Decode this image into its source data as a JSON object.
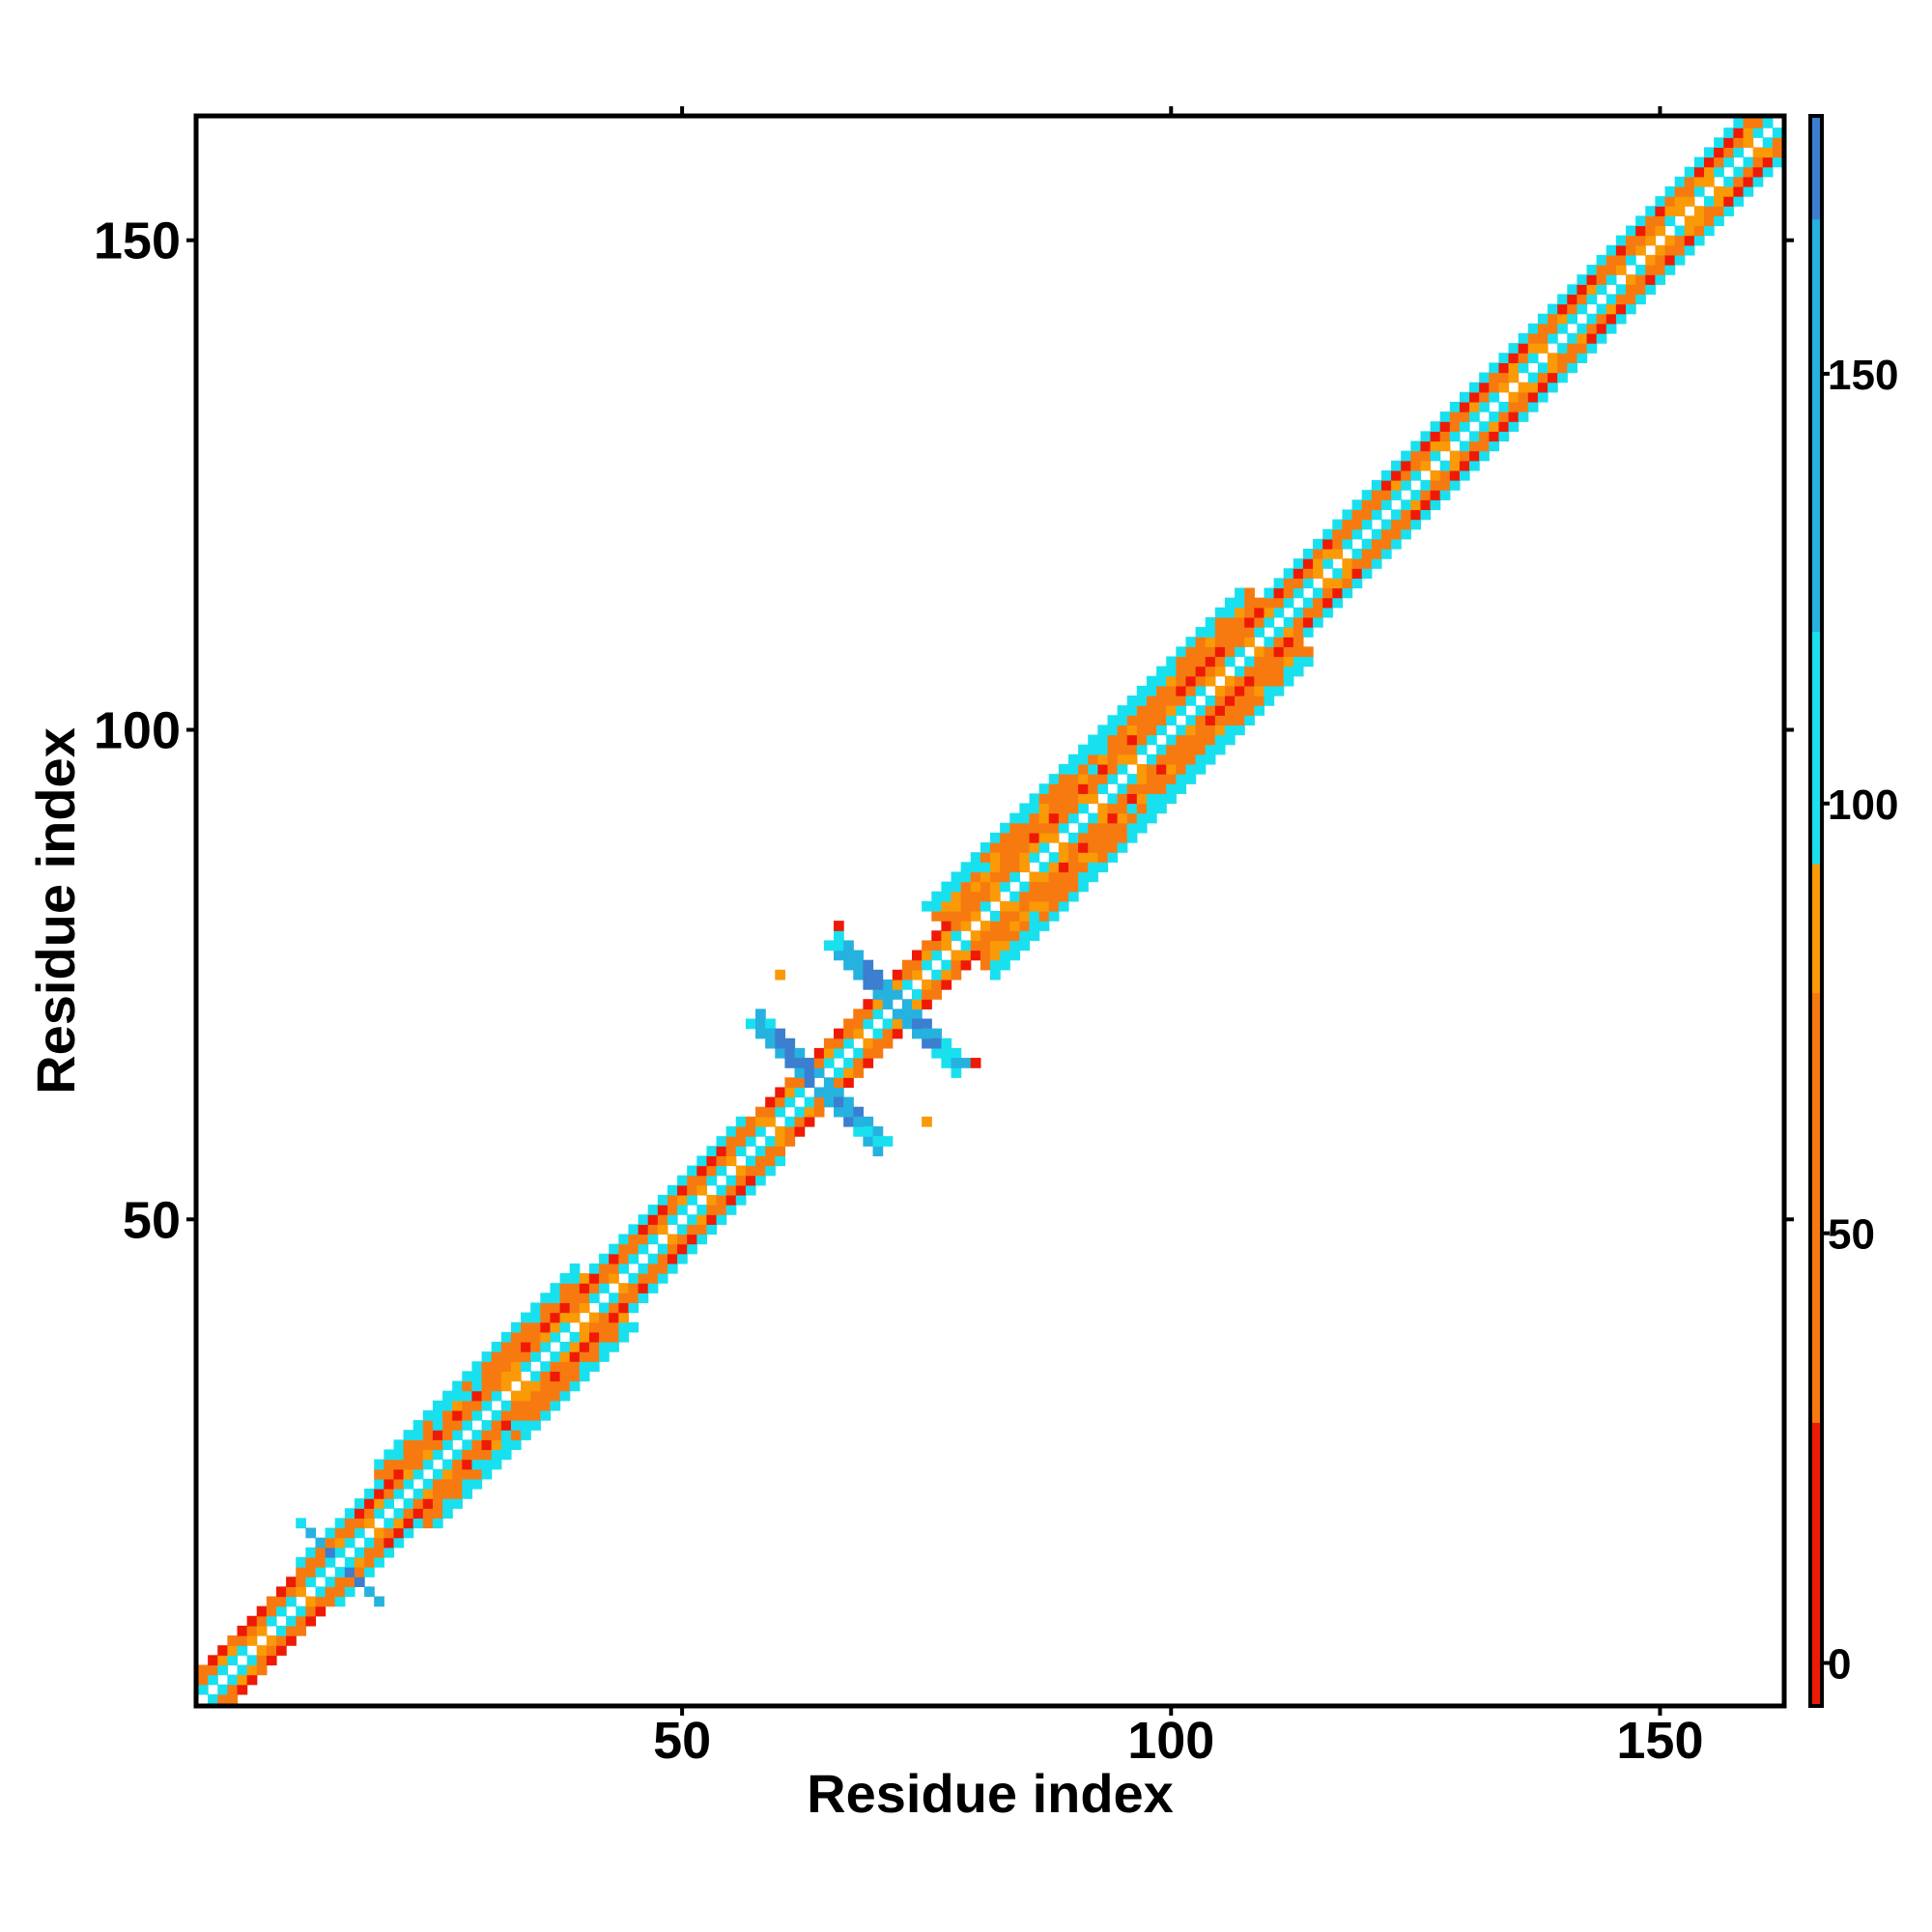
{
  "chart_data": {
    "type": "heatmap",
    "title": "",
    "xlabel": "Residue index",
    "ylabel": "Residue index",
    "xlim": [
      0.5,
      162.5
    ],
    "ylim": [
      0.5,
      162.5
    ],
    "x_ticks": [
      50,
      100,
      150
    ],
    "y_ticks": [
      50,
      100,
      150
    ],
    "grid": false,
    "legend": "colorbar-right",
    "colorbar": {
      "range": [
        -5,
        180
      ],
      "ticks": [
        0,
        50,
        100,
        150
      ],
      "stops": [
        {
          "from": -5,
          "to": 28,
          "color": "#ee1a05"
        },
        {
          "from": 28,
          "to": 78,
          "color": "#f77a10"
        },
        {
          "from": 78,
          "to": 93,
          "color": "#fa9a06"
        },
        {
          "from": 93,
          "to": 120,
          "color": "#19e0ef"
        },
        {
          "from": 120,
          "to": 168,
          "color": "#26b2df"
        },
        {
          "from": 168,
          "to": 180,
          "color": "#3c7ed0"
        }
      ],
      "above_max_color": "#ffffff"
    },
    "series": [
      {
        "band_segments": [
          {
            "from": 1,
            "to": 12,
            "halfwidth": 3
          },
          {
            "from": 13,
            "to": 21,
            "halfwidth": 4
          },
          {
            "from": 22,
            "to": 42,
            "halfwidth": 6
          },
          {
            "from": 43,
            "to": 58,
            "halfwidth": 4
          },
          {
            "from": 59,
            "to": 78,
            "halfwidth": 3
          },
          {
            "from": 79,
            "to": 111,
            "halfwidth": 7
          },
          {
            "from": 112,
            "to": 162,
            "halfwidth": 4
          }
        ]
      },
      {
        "cross_patterns": [
          {
            "center": [
              15,
              15
            ],
            "arm": 4,
            "width": 1
          },
          {
            "center": [
              64,
              64
            ],
            "arm": 6,
            "width": 2
          },
          {
            "center": [
              72,
              72
            ],
            "arm": 6,
            "width": 2
          }
        ]
      },
      {
        "isolated_cells": [
          {
            "x": 60,
            "y": 75,
            "value": 85
          },
          {
            "x": 75,
            "y": 60,
            "value": 85
          },
          {
            "x": 66,
            "y": 80,
            "value": 10
          },
          {
            "x": 80,
            "y": 66,
            "value": 10
          }
        ]
      }
    ]
  }
}
